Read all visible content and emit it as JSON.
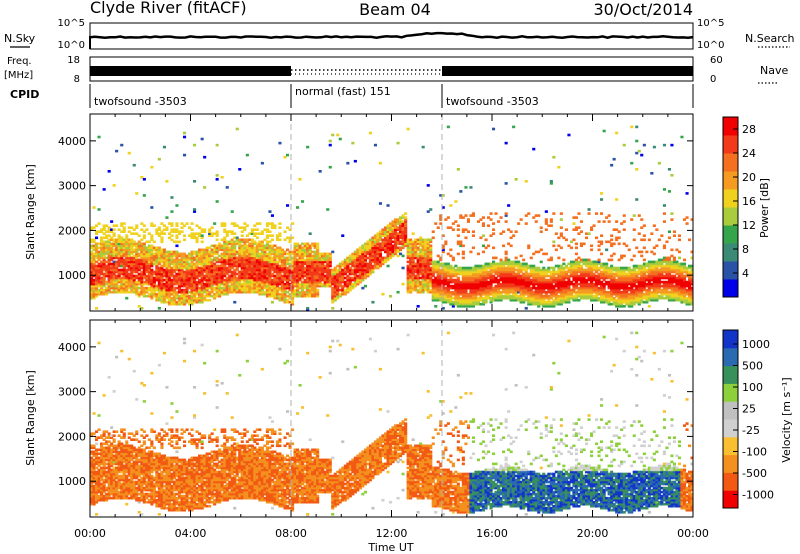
{
  "header": {
    "station": "Clyde River (fitACF)",
    "beam": "Beam 04",
    "date": "30/Oct/2014"
  },
  "nsky_panel": {
    "left_label": "N.Sky",
    "right_label": "N.Search",
    "left_ticks": [
      "10^5",
      "10^0"
    ],
    "right_ticks": [
      "10^5",
      "10^0"
    ]
  },
  "freq_panel": {
    "left_label_top": "Freq.",
    "left_label_unit": "[MHz]",
    "left_ticks": [
      "18",
      "8"
    ],
    "right_label": "Nave",
    "right_ticks": [
      "60",
      "0"
    ]
  },
  "cpid_panel": {
    "label": "CPID",
    "segments": [
      {
        "name": "twofsound -3503",
        "start_hour": 0,
        "end_hour": 8
      },
      {
        "name": "normal (fast) 151",
        "start_hour": 8,
        "end_hour": 14
      },
      {
        "name": "twofsound -3503",
        "start_hour": 14,
        "end_hour": 24
      }
    ]
  },
  "colors": {
    "power_scale": [
      "#0000e8",
      "#2a52a6",
      "#3a8a76",
      "#34a54a",
      "#a8cc3c",
      "#f0d21e",
      "#f59b22",
      "#f47020",
      "#f23a1a",
      "#f00000"
    ],
    "velocity_scale": [
      "#f00000",
      "#f25a14",
      "#f4901e",
      "#f8c030",
      "#d0d0d0",
      "#c0c0c0",
      "#8cd03c",
      "#38905a",
      "#2a6ab0",
      "#1234c8"
    ]
  },
  "chart_data": [
    {
      "type": "heatmap",
      "title": "Power",
      "ylabel": "Slant Range [km]",
      "xlabel": "",
      "xlim": [
        0,
        24
      ],
      "ylim": [
        200,
        4600
      ],
      "yticks": [
        1000,
        2000,
        3000,
        4000
      ],
      "colorbar": {
        "label": "Power [dB]",
        "ticks": [
          4,
          8,
          12,
          16,
          20,
          24,
          28
        ],
        "range": [
          0,
          30
        ]
      },
      "mode_boundaries_hours": [
        8,
        14
      ],
      "main_echo_bands": [
        {
          "start_hour": 0.0,
          "end_hour": 8.0,
          "low_km": 600,
          "high_km": 1800,
          "note": "backscatter strongest near 1000 km"
        },
        {
          "start_hour": 8.0,
          "end_hour": 12.5,
          "low_km": 500,
          "high_km": 2200,
          "note": "rising echo trace to ~2000 km near 12:00"
        },
        {
          "start_hour": 13.5,
          "end_hour": 24.0,
          "low_km": 400,
          "high_km": 1300,
          "note": "strong echoes, 28+ dB"
        }
      ]
    },
    {
      "type": "heatmap",
      "title": "Velocity",
      "ylabel": "Slant Range [km]",
      "xlabel": "Time UT",
      "xlim": [
        0,
        24
      ],
      "ylim": [
        200,
        4600
      ],
      "yticks": [
        1000,
        2000,
        3000,
        4000
      ],
      "xticks": [
        "00:00",
        "04:00",
        "08:00",
        "12:00",
        "16:00",
        "20:00",
        "00:00"
      ],
      "colorbar": {
        "label": "Velocity [m s⁻¹]",
        "ticks": [
          1000,
          500,
          100,
          25,
          -25,
          -100,
          -500,
          -1000
        ]
      },
      "mode_boundaries_hours": [
        8,
        14
      ],
      "main_echo_bands": [
        {
          "start_hour": 0.0,
          "end_hour": 13.5,
          "low_km": 600,
          "high_km": 2000,
          "note": "mostly -100 to -500 m/s (orange)"
        },
        {
          "start_hour": 15.0,
          "end_hour": 24.0,
          "low_km": 400,
          "high_km": 1300,
          "note": "positive velocities 100 to 1000 m/s (green/blue)"
        }
      ]
    }
  ]
}
